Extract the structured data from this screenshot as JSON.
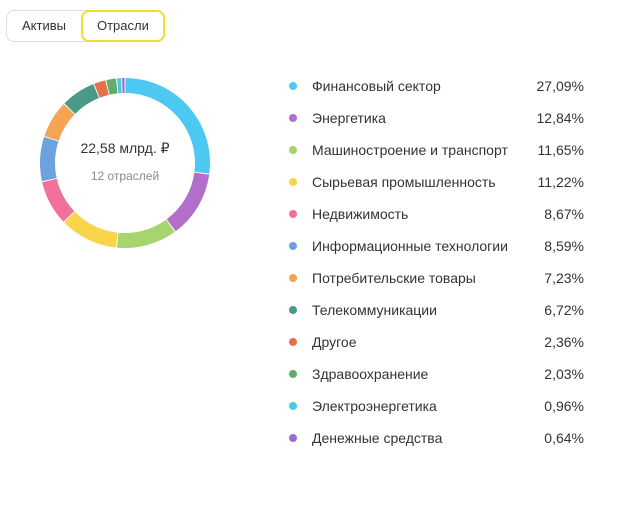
{
  "tabs": [
    {
      "label": "Активы",
      "active": false
    },
    {
      "label": "Отрасли",
      "active": true
    }
  ],
  "donut": {
    "total": "22,58 млрд. ₽",
    "count": "12 отраслей"
  },
  "chart_data": {
    "type": "pie",
    "title": "",
    "categories": [
      "Финансовый сектор",
      "Энергетика",
      "Машиностроение и транспорт",
      "Сырьевая промышленность",
      "Недвижимость",
      "Информационные технологии",
      "Потребительские товары",
      "Телекоммуникации",
      "Другое",
      "Здравоохранение",
      "Электроэнергетика",
      "Денежные средства"
    ],
    "values": [
      27.09,
      12.84,
      11.65,
      11.22,
      8.67,
      8.59,
      7.23,
      6.72,
      2.36,
      2.03,
      0.96,
      0.64
    ],
    "labels": [
      "27,09%",
      "12,84%",
      "11,65%",
      "11,22%",
      "8,67%",
      "8,59%",
      "7,23%",
      "6,72%",
      "2,36%",
      "2,03%",
      "0,96%",
      "0,64%"
    ],
    "colors": [
      "#4dc8f2",
      "#b26ec8",
      "#a8d46e",
      "#fad44a",
      "#f2709c",
      "#6ea2dc",
      "#f4a452",
      "#4a9a8a",
      "#e4704e",
      "#64ac6c",
      "#48cce0",
      "#9a6ccc"
    ],
    "legend_position": "right"
  }
}
